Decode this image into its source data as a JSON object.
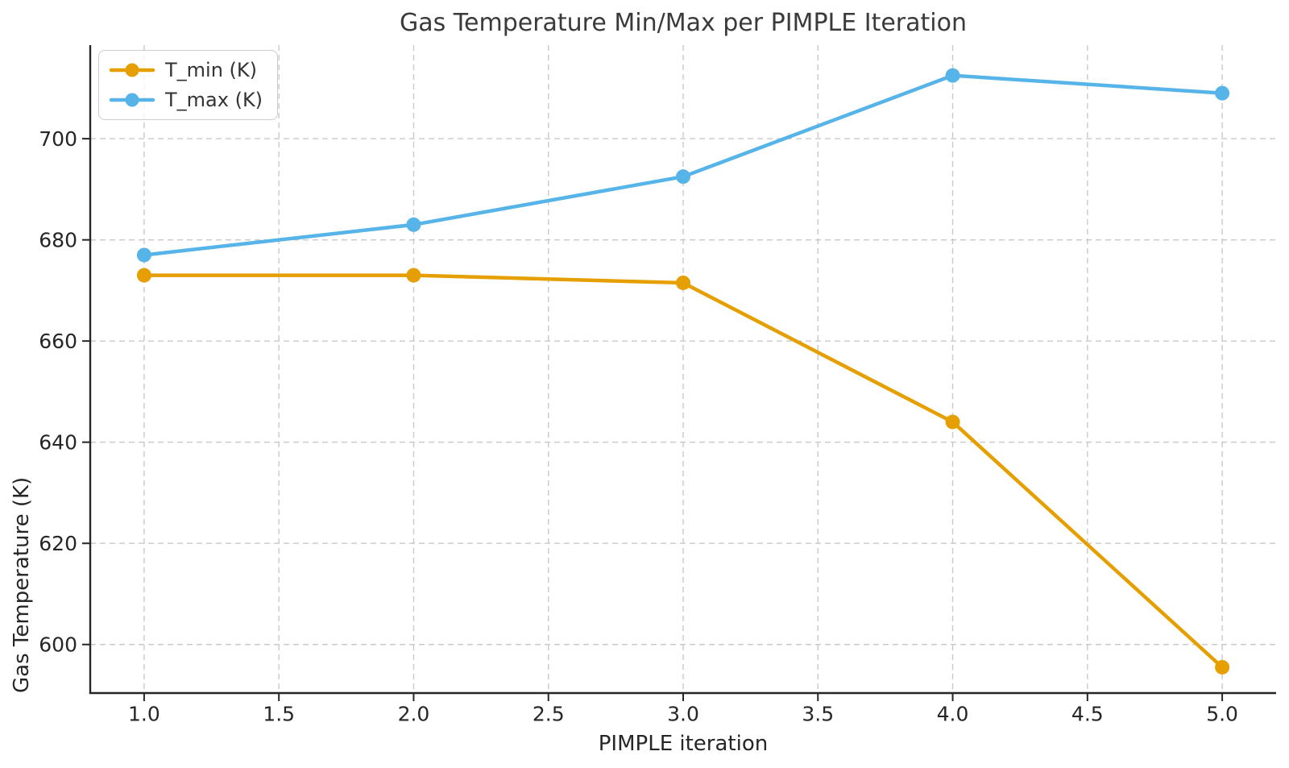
{
  "figure": {
    "background": "#ffffff"
  },
  "chart_data": {
    "type": "line",
    "title": "Gas Temperature Min/Max per PIMPLE Iteration",
    "xlabel": "PIMPLE iteration",
    "ylabel": "Gas Temperature (K)",
    "x": [
      1,
      2,
      3,
      4,
      5
    ],
    "series": [
      {
        "name": "T_min (K)",
        "color": "#E69F00",
        "values": [
          673,
          673,
          671.5,
          644,
          595.5
        ]
      },
      {
        "name": "T_max (K)",
        "color": "#56B4E9",
        "values": [
          677,
          683,
          692.5,
          712.5,
          709
        ]
      }
    ],
    "xlim": [
      0.8,
      5.2
    ],
    "ylim": [
      590.4,
      718.5
    ],
    "xtick_values": [
      1.0,
      1.5,
      2.0,
      2.5,
      3.0,
      3.5,
      4.0,
      4.5,
      5.0
    ],
    "xtick_labels": [
      "1.0",
      "1.5",
      "2.0",
      "2.5",
      "3.0",
      "3.5",
      "4.0",
      "4.5",
      "5.0"
    ],
    "ytick_values": [
      600,
      620,
      640,
      660,
      680,
      700
    ],
    "ytick_labels": [
      "600",
      "620",
      "640",
      "660",
      "680",
      "700"
    ],
    "grid": true,
    "legend_position": "upper left",
    "marker": "circle",
    "marker_radius": 9,
    "line_width": 4.5
  }
}
